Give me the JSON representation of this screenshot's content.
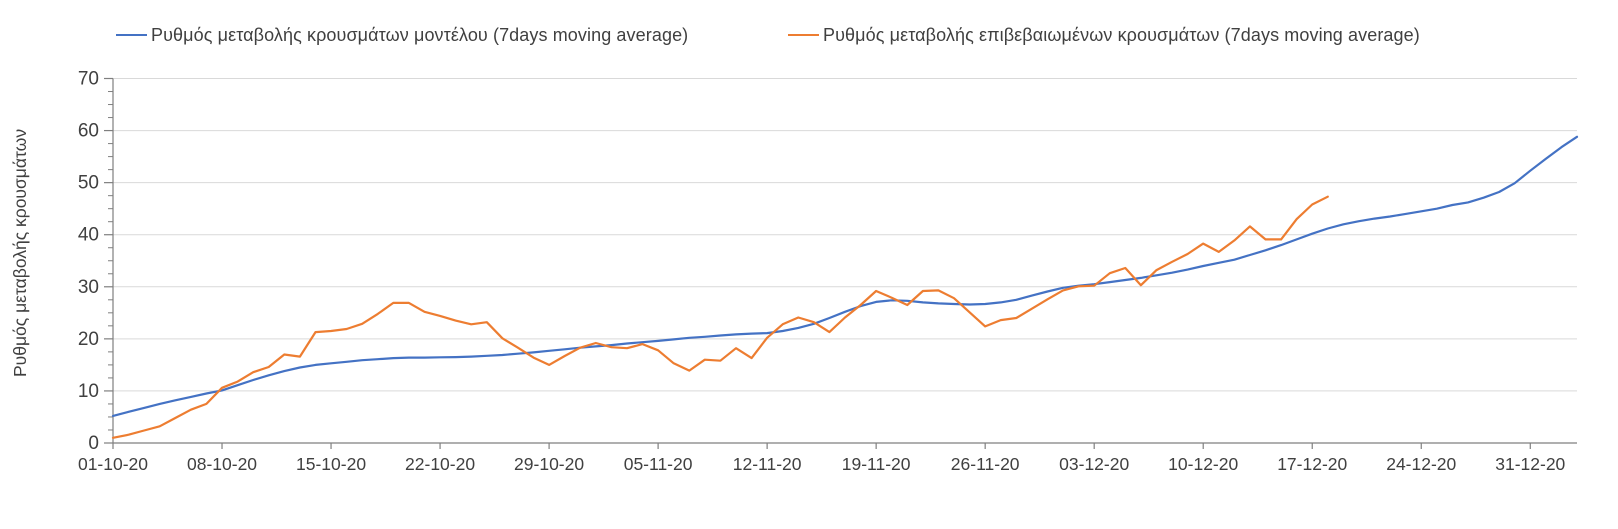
{
  "legend": [
    {
      "label": "Ρυθμός μεταβολής κρουσμάτων μοντέλου (7days moving average)",
      "color": "#4472C4"
    },
    {
      "label": "Ρυθμός μεταβολής επιβεβαιωμένων κρουσμάτων (7days moving average)",
      "color": "#ED7D31"
    }
  ],
  "colors": {
    "series_model": "#4472C4",
    "series_confirmed": "#ED7D31",
    "gridline": "#D9D9D9",
    "axis": "#7F7F7F",
    "tick_label": "#404040",
    "background": "#FFFFFF"
  },
  "chart_data": {
    "type": "line",
    "title": "",
    "xlabel": "",
    "ylabel": "Ρυθμός μεταβολής κρουσμάτων",
    "ylim": [
      0,
      70
    ],
    "y_ticks": [
      0,
      10,
      20,
      30,
      40,
      50,
      60,
      70
    ],
    "y_minor_tick_step": 2.5,
    "grid": "horizontal-only",
    "legend_position": "top",
    "x_cadence": "daily",
    "x_total_days": 94,
    "x_tick_labels": [
      "01-10-20",
      "08-10-20",
      "15-10-20",
      "22-10-20",
      "29-10-20",
      "05-11-20",
      "12-11-20",
      "19-11-20",
      "26-11-20",
      "03-12-20",
      "10-12-20",
      "17-12-20",
      "24-12-20",
      "31-12-20"
    ],
    "x_tick_day_index": [
      0,
      7,
      14,
      21,
      28,
      35,
      42,
      49,
      56,
      63,
      70,
      77,
      84,
      91
    ],
    "series": [
      {
        "name": "Ρυθμός μεταβολής κρουσμάτων μοντέλου (7days moving average)",
        "color": "#4472C4",
        "start_date": "01-10-20",
        "end_date": "03-01-21",
        "values": [
          5.2,
          6.0,
          6.75,
          7.5,
          8.2,
          8.85,
          9.5,
          10.1,
          11.1,
          12.1,
          13.0,
          13.8,
          14.5,
          15.0,
          15.3,
          15.6,
          15.9,
          16.1,
          16.3,
          16.4,
          16.4,
          16.45,
          16.5,
          16.6,
          16.75,
          16.9,
          17.15,
          17.4,
          17.7,
          18.0,
          18.3,
          18.55,
          18.8,
          19.1,
          19.35,
          19.6,
          19.9,
          20.2,
          20.4,
          20.65,
          20.85,
          21.0,
          21.1,
          21.5,
          22.1,
          22.9,
          24.0,
          25.2,
          26.3,
          27.1,
          27.4,
          27.3,
          27.0,
          26.8,
          26.7,
          26.6,
          26.7,
          27.0,
          27.5,
          28.3,
          29.1,
          29.8,
          30.2,
          30.5,
          30.9,
          31.3,
          31.7,
          32.2,
          32.7,
          33.3,
          34.0,
          34.6,
          35.2,
          36.1,
          37.0,
          38.0,
          39.1,
          40.2,
          41.2,
          42.0,
          42.6,
          43.1,
          43.5,
          44.0,
          44.5,
          45.0,
          45.7,
          46.2,
          47.1,
          48.2,
          49.9,
          52.3,
          54.6,
          56.8,
          58.8
        ]
      },
      {
        "name": "Ρυθμός μεταβολής επιβεβαιωμένων κρουσμάτων (7days moving average)",
        "color": "#ED7D31",
        "start_date": "01-10-20",
        "end_date": "18-12-20",
        "values": [
          1.0,
          1.6,
          2.4,
          3.2,
          4.8,
          6.4,
          7.5,
          10.6,
          11.8,
          13.6,
          14.6,
          17.0,
          16.6,
          21.3,
          21.5,
          21.9,
          22.9,
          24.8,
          26.9,
          26.9,
          25.2,
          24.4,
          23.5,
          22.8,
          23.2,
          20.1,
          18.3,
          16.4,
          15.0,
          16.7,
          18.3,
          19.2,
          18.4,
          18.2,
          19.0,
          17.8,
          15.3,
          13.9,
          16.0,
          15.8,
          18.2,
          16.3,
          20.2,
          22.8,
          24.1,
          23.2,
          21.3,
          24.1,
          26.5,
          29.2,
          27.9,
          26.5,
          29.2,
          29.3,
          27.8,
          25.1,
          22.4,
          23.6,
          24.0,
          25.8,
          27.6,
          29.3,
          30.1,
          30.2,
          32.6,
          33.6,
          30.3,
          33.2,
          34.8,
          36.3,
          38.3,
          36.7,
          38.9,
          41.6,
          39.1,
          39.1,
          43.0,
          45.8,
          47.3
        ]
      }
    ]
  }
}
